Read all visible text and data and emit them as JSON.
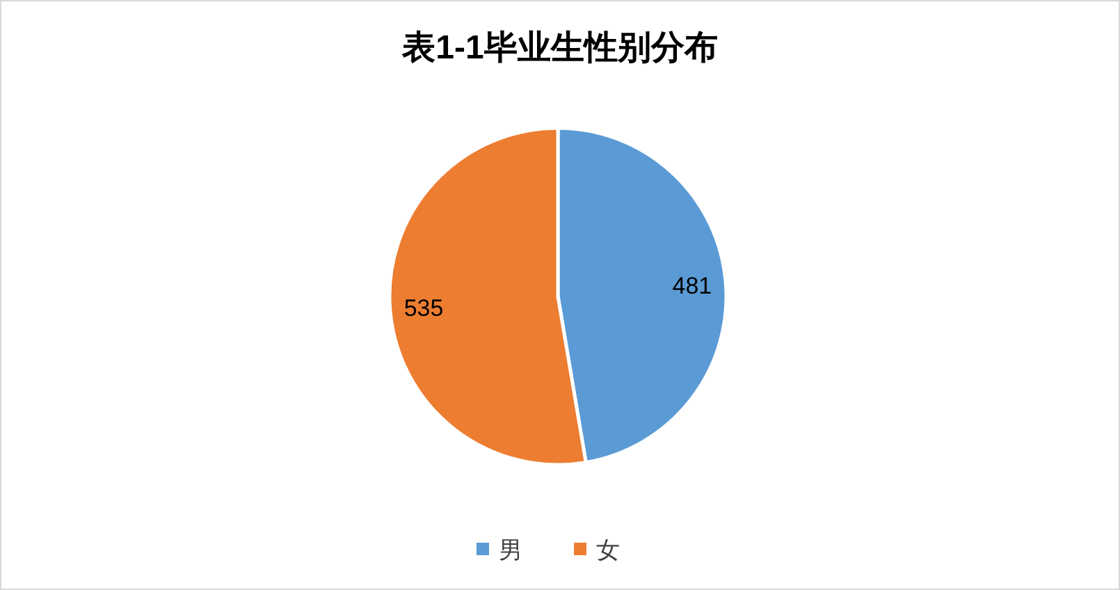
{
  "chart_data": {
    "type": "pie",
    "title": "表1-1毕业生性别分布",
    "categories": [
      "男",
      "女"
    ],
    "values": [
      481,
      535
    ],
    "colors": [
      "#5b9bd5",
      "#ed7d31"
    ],
    "data_labels": true,
    "legend": "bottom"
  }
}
